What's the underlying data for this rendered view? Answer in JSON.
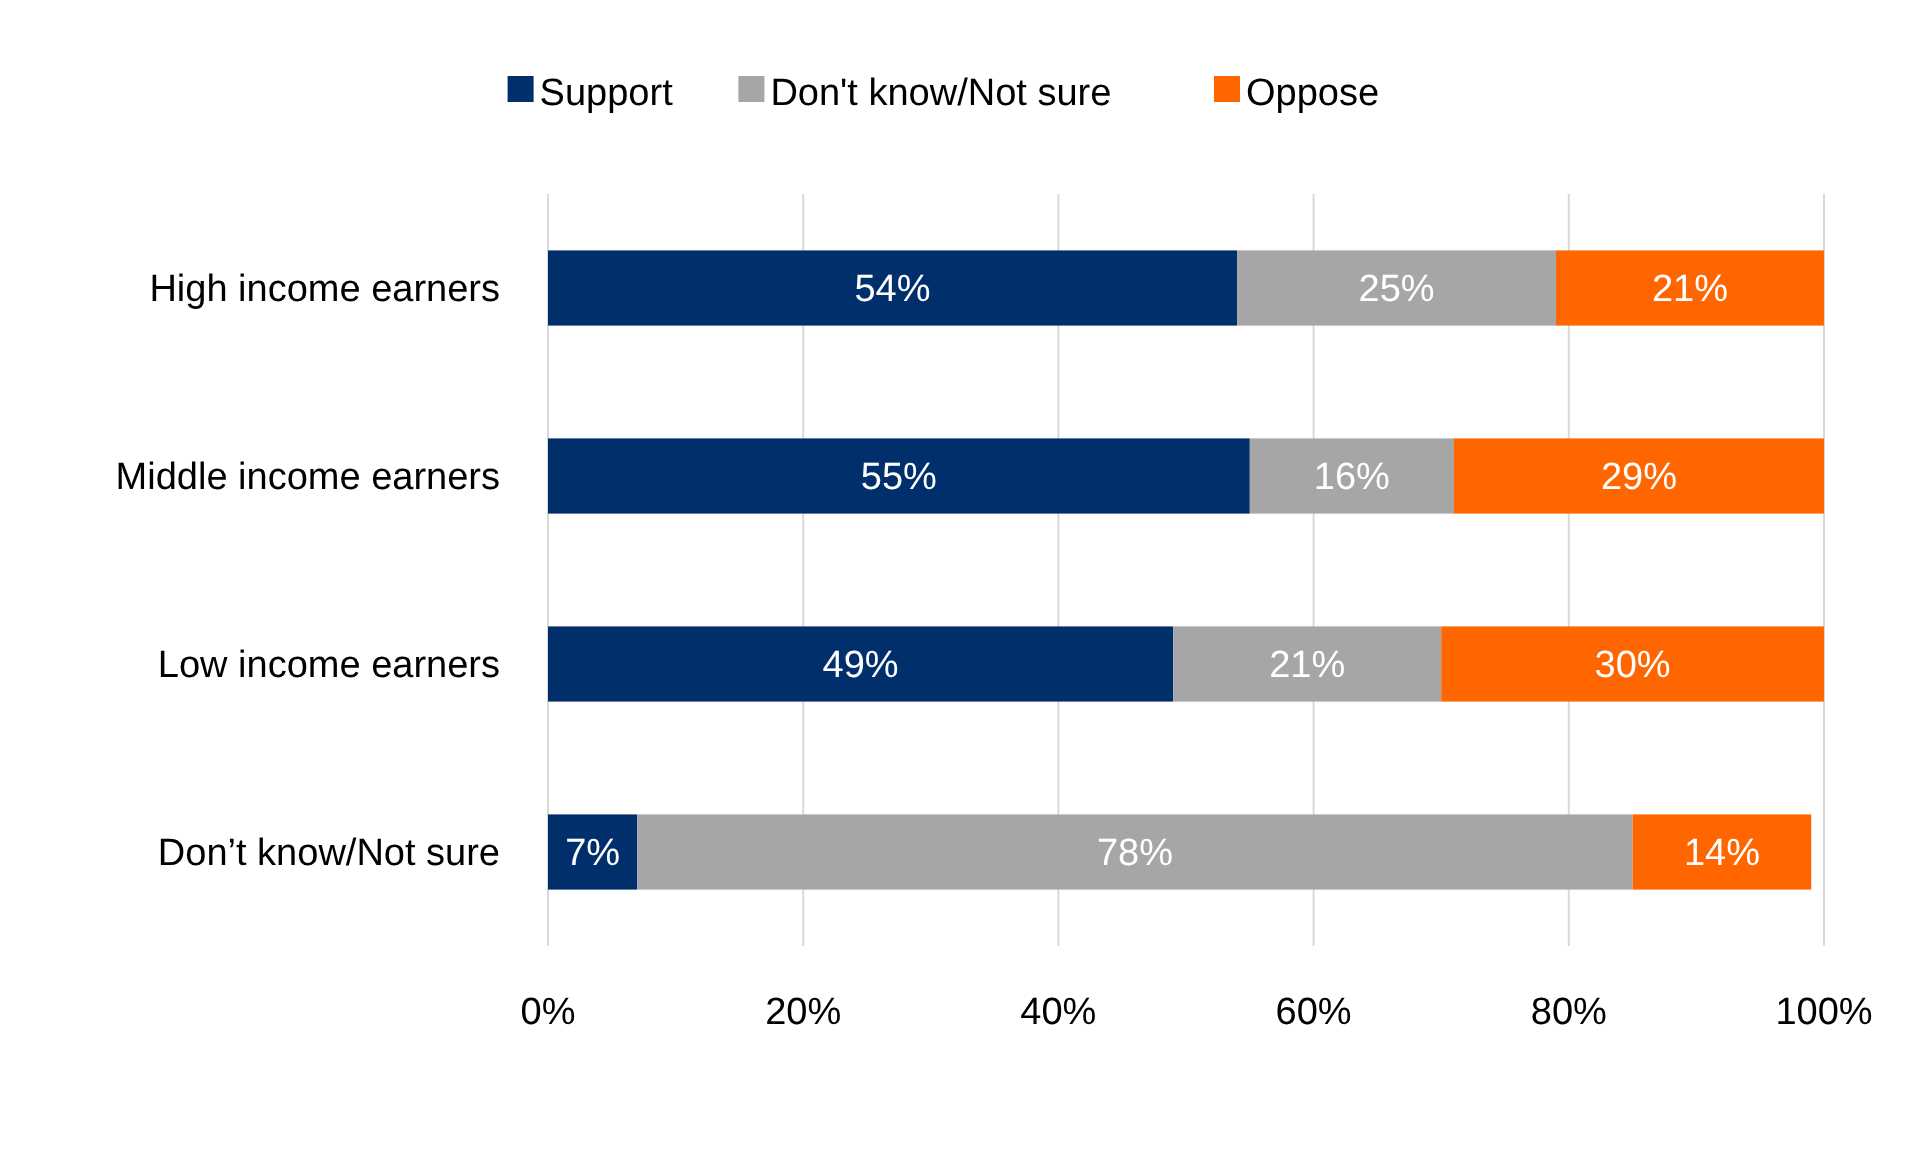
{
  "chart_data": {
    "type": "bar",
    "orientation": "horizontal",
    "stacked": true,
    "categories": [
      "High income earners",
      "Middle income earners",
      "Low income earners",
      "Don’t know/Not sure"
    ],
    "series": [
      {
        "name": "Support",
        "color": "#002f6c",
        "values": [
          54,
          55,
          49,
          7
        ],
        "value_labels": [
          "54%",
          "55%",
          "49%",
          "7%"
        ]
      },
      {
        "name": "Don't know/Not sure",
        "color": "#a6a6a6",
        "values": [
          25,
          16,
          21,
          78
        ],
        "value_labels": [
          "25%",
          "16%",
          "21%",
          "78%"
        ]
      },
      {
        "name": "Oppose",
        "color": "#ff6600",
        "values": [
          21,
          29,
          30,
          14
        ],
        "value_labels": [
          "21%",
          "29%",
          "30%",
          "14%"
        ]
      }
    ],
    "xlim": [
      0,
      100
    ],
    "xticks": [
      {
        "value": 0,
        "label": "0%"
      },
      {
        "value": 20,
        "label": "20%"
      },
      {
        "value": 40,
        "label": "40%"
      },
      {
        "value": 60,
        "label": "60%"
      },
      {
        "value": 80,
        "label": "80%"
      },
      {
        "value": 100,
        "label": "100%"
      }
    ],
    "grid": "x",
    "legend": "top"
  }
}
